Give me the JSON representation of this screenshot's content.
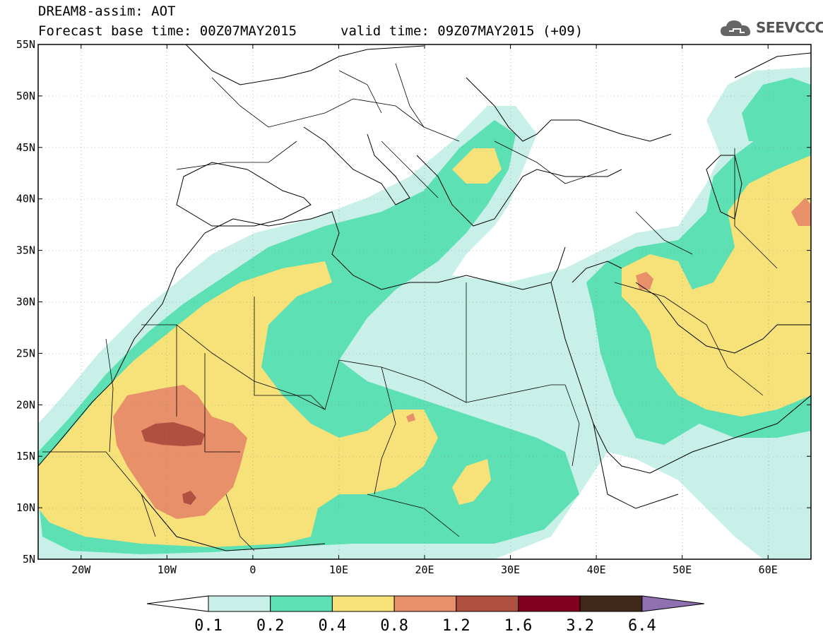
{
  "header": {
    "line1": "DREAM8-assim: AOT",
    "line2_left": "Forecast base time: 00Z07MAY2015",
    "line2_right": "valid time: 09Z07MAY2015 (+09)"
  },
  "logo": {
    "text": "SEEVCCC",
    "icon": "cloud-icon"
  },
  "map": {
    "lon_range": [
      -25,
      65
    ],
    "lat_range": [
      5,
      55
    ],
    "lat_ticks": [
      "55N",
      "50N",
      "45N",
      "40N",
      "35N",
      "30N",
      "25N",
      "20N",
      "15N",
      "10N",
      "5N"
    ],
    "lon_ticks": [
      "20W",
      "10W",
      "0",
      "10E",
      "20E",
      "30E",
      "40E",
      "50E",
      "60E"
    ]
  },
  "colorbar": {
    "labels": [
      "0.1",
      "0.2",
      "0.4",
      "0.8",
      "1.2",
      "1.6",
      "3.2",
      "6.4"
    ],
    "colors": [
      "#c8f0e8",
      "#5ce0b4",
      "#f7e27a",
      "#e8906a",
      "#b05040",
      "#800020",
      "#40281a",
      "#9070b0"
    ]
  }
}
